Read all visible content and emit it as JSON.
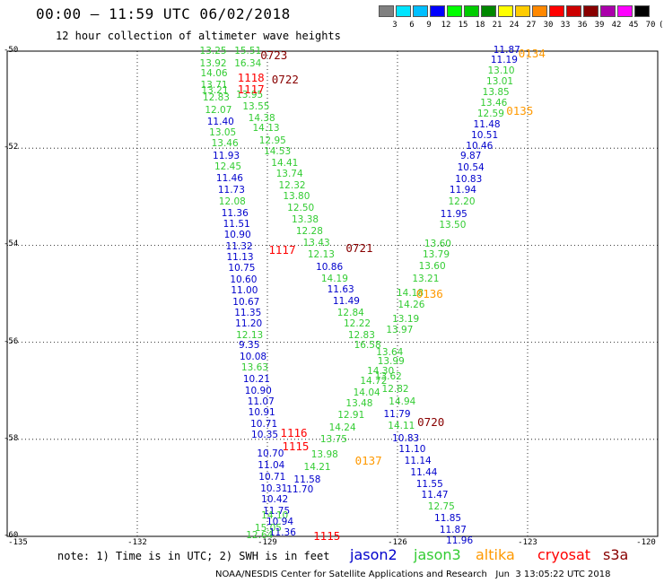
{
  "header": {
    "title": "00:00 – 11:59 UTC 06/02/2018",
    "subtitle": "12 hour collection of altimeter wave heights"
  },
  "colorbar": {
    "labels": [
      "3",
      "6",
      "9",
      "12",
      "15",
      "18",
      "21",
      "24",
      "27",
      "30",
      "33",
      "36",
      "39",
      "42",
      "45",
      "70",
      "(ft)"
    ],
    "colors": [
      "#808080",
      "#00e5ff",
      "#00bfff",
      "#0000ff",
      "#00ff00",
      "#00cc00",
      "#008800",
      "#ffff00",
      "#ffcc00",
      "#ff8800",
      "#ff0000",
      "#cc0000",
      "#880000",
      "#aa00aa",
      "#ff00ff",
      "#000000"
    ]
  },
  "map": {
    "lat_labels": [
      "-50",
      "-52",
      "-54",
      "-56",
      "-58",
      "-60"
    ],
    "lon_labels": [
      "-135",
      "-132",
      "-129",
      "-126",
      "-123",
      "-120"
    ]
  },
  "satellite_colors": {
    "jason2": "#0000cc",
    "jason3": "#33cc33",
    "altika": "#ff9900",
    "cryosat": "#ff0000",
    "s3a": "#880000"
  },
  "observations": [
    {
      "v": "13.25",
      "lon": -130.52,
      "lat": -50.02,
      "sat": "jason3"
    },
    {
      "v": "15.51",
      "lon": -129.72,
      "lat": -50.02,
      "sat": "jason3"
    },
    {
      "v": "13.92",
      "lon": -130.52,
      "lat": -50.27,
      "sat": "jason3"
    },
    {
      "v": "16.34",
      "lon": -129.72,
      "lat": -50.27,
      "sat": "jason3"
    },
    {
      "v": "14.06",
      "lon": -130.5,
      "lat": -50.48,
      "sat": "jason3"
    },
    {
      "v": "13.71",
      "lon": -130.5,
      "lat": -50.73,
      "sat": "jason3"
    },
    {
      "v": "13.21",
      "lon": -130.48,
      "lat": -50.83,
      "sat": "jason3"
    },
    {
      "v": "12.83",
      "lon": -130.45,
      "lat": -50.98,
      "sat": "jason3"
    },
    {
      "v": "13.95",
      "lon": -129.68,
      "lat": -50.92,
      "sat": "jason3"
    },
    {
      "v": "12.07",
      "lon": -130.4,
      "lat": -51.23,
      "sat": "jason3"
    },
    {
      "v": "13.55",
      "lon": -129.53,
      "lat": -51.16,
      "sat": "jason3"
    },
    {
      "v": "11.40",
      "lon": -130.35,
      "lat": -51.47,
      "sat": "jason2"
    },
    {
      "v": "14.38",
      "lon": -129.4,
      "lat": -51.41,
      "sat": "jason3"
    },
    {
      "v": "13.05",
      "lon": -130.3,
      "lat": -51.7,
      "sat": "jason3"
    },
    {
      "v": "14.13",
      "lon": -129.3,
      "lat": -51.61,
      "sat": "jason3"
    },
    {
      "v": "13.46",
      "lon": -130.25,
      "lat": -51.93,
      "sat": "jason3"
    },
    {
      "v": "12.95",
      "lon": -129.15,
      "lat": -51.86,
      "sat": "jason3"
    },
    {
      "v": "11.93",
      "lon": -130.22,
      "lat": -52.18,
      "sat": "jason2"
    },
    {
      "v": "14.53",
      "lon": -129.04,
      "lat": -52.08,
      "sat": "jason3"
    },
    {
      "v": "12.45",
      "lon": -130.18,
      "lat": -52.41,
      "sat": "jason3"
    },
    {
      "v": "14.41",
      "lon": -128.87,
      "lat": -52.32,
      "sat": "jason3"
    },
    {
      "v": "11.46",
      "lon": -130.14,
      "lat": -52.64,
      "sat": "jason2"
    },
    {
      "v": "13.74",
      "lon": -128.76,
      "lat": -52.56,
      "sat": "jason3"
    },
    {
      "v": "11.73",
      "lon": -130.1,
      "lat": -52.88,
      "sat": "jason2"
    },
    {
      "v": "12.32",
      "lon": -128.7,
      "lat": -52.8,
      "sat": "jason3"
    },
    {
      "v": "12.08",
      "lon": -130.08,
      "lat": -53.12,
      "sat": "jason3"
    },
    {
      "v": "13.80",
      "lon": -128.6,
      "lat": -53.02,
      "sat": "jason3"
    },
    {
      "v": "11.36",
      "lon": -130.02,
      "lat": -53.36,
      "sat": "jason2"
    },
    {
      "v": "12.50",
      "lon": -128.5,
      "lat": -53.25,
      "sat": "jason3"
    },
    {
      "v": "11.51",
      "lon": -129.98,
      "lat": -53.59,
      "sat": "jason2"
    },
    {
      "v": "13.38",
      "lon": -128.4,
      "lat": -53.5,
      "sat": "jason3"
    },
    {
      "v": "10.90",
      "lon": -129.96,
      "lat": -53.81,
      "sat": "jason2"
    },
    {
      "v": "12.28",
      "lon": -128.3,
      "lat": -53.73,
      "sat": "jason3"
    },
    {
      "v": "11.32",
      "lon": -129.92,
      "lat": -54.04,
      "sat": "jason2"
    },
    {
      "v": "13.43",
      "lon": -128.14,
      "lat": -53.98,
      "sat": "jason3"
    },
    {
      "v": "11.13",
      "lon": -129.9,
      "lat": -54.27,
      "sat": "jason2"
    },
    {
      "v": "12.13",
      "lon": -128.03,
      "lat": -54.21,
      "sat": "jason3"
    },
    {
      "v": "10.75",
      "lon": -129.86,
      "lat": -54.5,
      "sat": "jason2"
    },
    {
      "v": "10.86",
      "lon": -127.84,
      "lat": -54.47,
      "sat": "jason2"
    },
    {
      "v": "10.60",
      "lon": -129.82,
      "lat": -54.73,
      "sat": "jason2"
    },
    {
      "v": "14.19",
      "lon": -127.72,
      "lat": -54.71,
      "sat": "jason3"
    },
    {
      "v": "11.00",
      "lon": -129.8,
      "lat": -54.96,
      "sat": "jason2"
    },
    {
      "v": "11.63",
      "lon": -127.58,
      "lat": -54.93,
      "sat": "jason2"
    },
    {
      "v": "10.67",
      "lon": -129.76,
      "lat": -55.19,
      "sat": "jason2"
    },
    {
      "v": "11.49",
      "lon": -127.45,
      "lat": -55.18,
      "sat": "jason2"
    },
    {
      "v": "11.35",
      "lon": -129.72,
      "lat": -55.41,
      "sat": "jason2"
    },
    {
      "v": "12.84",
      "lon": -127.35,
      "lat": -55.41,
      "sat": "jason3"
    },
    {
      "v": "11.20",
      "lon": -129.7,
      "lat": -55.64,
      "sat": "jason2"
    },
    {
      "v": "12.22",
      "lon": -127.2,
      "lat": -55.64,
      "sat": "jason3"
    },
    {
      "v": "12.13",
      "lon": -129.68,
      "lat": -55.87,
      "sat": "jason3"
    },
    {
      "v": "12.83",
      "lon": -127.1,
      "lat": -55.87,
      "sat": "jason3"
    },
    {
      "v": "9.35",
      "lon": -129.62,
      "lat": -56.09,
      "sat": "jason2"
    },
    {
      "v": "16.58",
      "lon": -126.96,
      "lat": -56.08,
      "sat": "jason3"
    },
    {
      "v": "10.08",
      "lon": -129.6,
      "lat": -56.32,
      "sat": "jason2"
    },
    {
      "v": "13.63",
      "lon": -129.56,
      "lat": -56.55,
      "sat": "jason3"
    },
    {
      "v": "14.30",
      "lon": -126.66,
      "lat": -56.62,
      "sat": "jason3"
    },
    {
      "v": "10.21",
      "lon": -129.52,
      "lat": -56.79,
      "sat": "jason2"
    },
    {
      "v": "14.72",
      "lon": -126.82,
      "lat": -56.82,
      "sat": "jason3"
    },
    {
      "v": "10.90",
      "lon": -129.48,
      "lat": -57.02,
      "sat": "jason2"
    },
    {
      "v": "14.04",
      "lon": -126.98,
      "lat": -57.07,
      "sat": "jason3"
    },
    {
      "v": "11.07",
      "lon": -129.42,
      "lat": -57.24,
      "sat": "jason2"
    },
    {
      "v": "13.48",
      "lon": -127.15,
      "lat": -57.29,
      "sat": "jason3"
    },
    {
      "v": "10.91",
      "lon": -129.4,
      "lat": -57.47,
      "sat": "jason2"
    },
    {
      "v": "12.91",
      "lon": -127.34,
      "lat": -57.52,
      "sat": "jason3"
    },
    {
      "v": "10.71",
      "lon": -129.35,
      "lat": -57.71,
      "sat": "jason2"
    },
    {
      "v": "14.24",
      "lon": -127.54,
      "lat": -57.78,
      "sat": "jason3"
    },
    {
      "v": "10.35",
      "lon": -129.33,
      "lat": -57.93,
      "sat": "jason2"
    },
    {
      "v": "13.75",
      "lon": -127.74,
      "lat": -58.03,
      "sat": "jason3"
    },
    {
      "v": "10.70",
      "lon": -129.2,
      "lat": -58.31,
      "sat": "jason2"
    },
    {
      "v": "13.98",
      "lon": -127.95,
      "lat": -58.34,
      "sat": "jason3"
    },
    {
      "v": "11.04",
      "lon": -129.18,
      "lat": -58.56,
      "sat": "jason2"
    },
    {
      "v": "14.21",
      "lon": -128.12,
      "lat": -58.59,
      "sat": "jason3"
    },
    {
      "v": "10.71",
      "lon": -129.16,
      "lat": -58.8,
      "sat": "jason2"
    },
    {
      "v": "11.58",
      "lon": -128.35,
      "lat": -58.86,
      "sat": "jason2"
    },
    {
      "v": "10.31",
      "lon": -129.12,
      "lat": -59.03,
      "sat": "jason2"
    },
    {
      "v": "11.70",
      "lon": -128.52,
      "lat": -59.06,
      "sat": "jason2"
    },
    {
      "v": "10.42",
      "lon": -129.1,
      "lat": -59.26,
      "sat": "jason2"
    },
    {
      "v": "11.75",
      "lon": -129.06,
      "lat": -59.5,
      "sat": "jason2"
    },
    {
      "v": "14.10",
      "lon": -129.1,
      "lat": -59.6,
      "sat": "jason3"
    },
    {
      "v": "10.94",
      "lon": -128.98,
      "lat": -59.73,
      "sat": "jason2"
    },
    {
      "v": "15.05",
      "lon": -129.25,
      "lat": -59.86,
      "sat": "jason3"
    },
    {
      "v": "11.36",
      "lon": -128.92,
      "lat": -59.95,
      "sat": "jason2"
    },
    {
      "v": "12.64",
      "lon": -129.45,
      "lat": -60.0,
      "sat": "jason3"
    },
    {
      "v": "11.87",
      "lon": -123.75,
      "lat": -50.0,
      "sat": "jason2"
    },
    {
      "v": "11.19",
      "lon": -123.81,
      "lat": -50.21,
      "sat": "jason2"
    },
    {
      "v": "13.10",
      "lon": -123.88,
      "lat": -50.43,
      "sat": "jason3"
    },
    {
      "v": "13.01",
      "lon": -123.91,
      "lat": -50.65,
      "sat": "jason3"
    },
    {
      "v": "13.85",
      "lon": -124.0,
      "lat": -50.87,
      "sat": "jason3"
    },
    {
      "v": "13.46",
      "lon": -124.05,
      "lat": -51.09,
      "sat": "jason3"
    },
    {
      "v": "12.59",
      "lon": -124.12,
      "lat": -51.31,
      "sat": "jason3"
    },
    {
      "v": "11.48",
      "lon": -124.21,
      "lat": -51.53,
      "sat": "jason2"
    },
    {
      "v": "10.51",
      "lon": -124.26,
      "lat": -51.75,
      "sat": "jason2"
    },
    {
      "v": "10.46",
      "lon": -124.38,
      "lat": -51.98,
      "sat": "jason2"
    },
    {
      "v": "9.87",
      "lon": -124.51,
      "lat": -52.19,
      "sat": "jason2"
    },
    {
      "v": "10.54",
      "lon": -124.58,
      "lat": -52.43,
      "sat": "jason2"
    },
    {
      "v": "10.83",
      "lon": -124.63,
      "lat": -52.66,
      "sat": "jason2"
    },
    {
      "v": "11.94",
      "lon": -124.76,
      "lat": -52.88,
      "sat": "jason2"
    },
    {
      "v": "12.20",
      "lon": -124.79,
      "lat": -53.12,
      "sat": "jason3"
    },
    {
      "v": "11.95",
      "lon": -124.97,
      "lat": -53.38,
      "sat": "jason2"
    },
    {
      "v": "13.50",
      "lon": -125.0,
      "lat": -53.6,
      "sat": "jason3"
    },
    {
      "v": "13.60",
      "lon": -125.34,
      "lat": -54.0,
      "sat": "jason3"
    },
    {
      "v": "13.79",
      "lon": -125.38,
      "lat": -54.21,
      "sat": "jason3"
    },
    {
      "v": "13.60",
      "lon": -125.47,
      "lat": -54.45,
      "sat": "jason3"
    },
    {
      "v": "13.21",
      "lon": -125.62,
      "lat": -54.71,
      "sat": "jason3"
    },
    {
      "v": "14.18",
      "lon": -125.98,
      "lat": -55.01,
      "sat": "jason3"
    },
    {
      "v": "14.26",
      "lon": -125.95,
      "lat": -55.25,
      "sat": "jason3"
    },
    {
      "v": "13.19",
      "lon": -126.08,
      "lat": -55.54,
      "sat": "jason3"
    },
    {
      "v": "13.97",
      "lon": -126.22,
      "lat": -55.77,
      "sat": "jason3"
    },
    {
      "v": "13.64",
      "lon": -126.45,
      "lat": -56.23,
      "sat": "jason3"
    },
    {
      "v": "13.99",
      "lon": -126.42,
      "lat": -56.42,
      "sat": "jason3"
    },
    {
      "v": "13.62",
      "lon": -126.48,
      "lat": -56.73,
      "sat": "jason3"
    },
    {
      "v": "12.82",
      "lon": -126.32,
      "lat": -56.98,
      "sat": "jason3"
    },
    {
      "v": "14.94",
      "lon": -126.16,
      "lat": -57.25,
      "sat": "jason3"
    },
    {
      "v": "11.79",
      "lon": -126.28,
      "lat": -57.5,
      "sat": "jason2"
    },
    {
      "v": "14.11",
      "lon": -126.18,
      "lat": -57.75,
      "sat": "jason3"
    },
    {
      "v": "10.83",
      "lon": -126.08,
      "lat": -58.0,
      "sat": "jason2"
    },
    {
      "v": "11.10",
      "lon": -125.93,
      "lat": -58.23,
      "sat": "jason2"
    },
    {
      "v": "11.14",
      "lon": -125.8,
      "lat": -58.46,
      "sat": "jason2"
    },
    {
      "v": "11.44",
      "lon": -125.66,
      "lat": -58.7,
      "sat": "jason2"
    },
    {
      "v": "11.55",
      "lon": -125.53,
      "lat": -58.94,
      "sat": "jason2"
    },
    {
      "v": "11.47",
      "lon": -125.41,
      "lat": -59.17,
      "sat": "jason2"
    },
    {
      "v": "12.75",
      "lon": -125.26,
      "lat": -59.4,
      "sat": "jason3"
    },
    {
      "v": "11.85",
      "lon": -125.11,
      "lat": -59.64,
      "sat": "jason2"
    },
    {
      "v": "11.87",
      "lon": -124.99,
      "lat": -59.88,
      "sat": "jason2"
    },
    {
      "v": "11.96",
      "lon": -124.84,
      "lat": -60.12,
      "sat": "jason2"
    }
  ],
  "pass_labels": [
    {
      "text": "0723",
      "lon": -129.12,
      "lat": -50.09,
      "sat": "s3a"
    },
    {
      "text": "1118",
      "lon": -129.65,
      "lat": -50.55,
      "sat": "cryosat"
    },
    {
      "text": "0722",
      "lon": -128.86,
      "lat": -50.6,
      "sat": "s3a"
    },
    {
      "text": "1117",
      "lon": -129.65,
      "lat": -50.8,
      "sat": "cryosat"
    },
    {
      "text": "0721",
      "lon": -127.15,
      "lat": -54.06,
      "sat": "s3a"
    },
    {
      "text": "1117",
      "lon": -128.93,
      "lat": -54.1,
      "sat": "cryosat"
    },
    {
      "text": "0134",
      "lon": -123.17,
      "lat": -50.06,
      "sat": "altika"
    },
    {
      "text": "0135",
      "lon": -123.45,
      "lat": -51.24,
      "sat": "altika"
    },
    {
      "text": "0136",
      "lon": -125.53,
      "lat": -55.0,
      "sat": "altika"
    },
    {
      "text": "0720",
      "lon": -125.5,
      "lat": -57.65,
      "sat": "s3a"
    },
    {
      "text": "1116",
      "lon": -128.66,
      "lat": -57.88,
      "sat": "cryosat"
    },
    {
      "text": "1115",
      "lon": -128.62,
      "lat": -58.15,
      "sat": "cryosat"
    },
    {
      "text": "0137",
      "lon": -126.94,
      "lat": -58.45,
      "sat": "altika"
    },
    {
      "text": "1115",
      "lon": -127.9,
      "lat": -60.0,
      "sat": "cryosat"
    }
  ],
  "note": "note: 1) Time is in UTC; 2) SWH is in feet",
  "legend": [
    {
      "label": "jason2",
      "sat": "jason2"
    },
    {
      "label": "jason3",
      "sat": "jason3"
    },
    {
      "label": "altika",
      "sat": "altika"
    },
    {
      "label": "cryosat",
      "sat": "cryosat"
    },
    {
      "label": "s3a",
      "sat": "s3a"
    }
  ],
  "footer": "NOAA/NESDIS Center for Satellite Applications and Research   Jun  3 13:05:22 UTC 2018"
}
